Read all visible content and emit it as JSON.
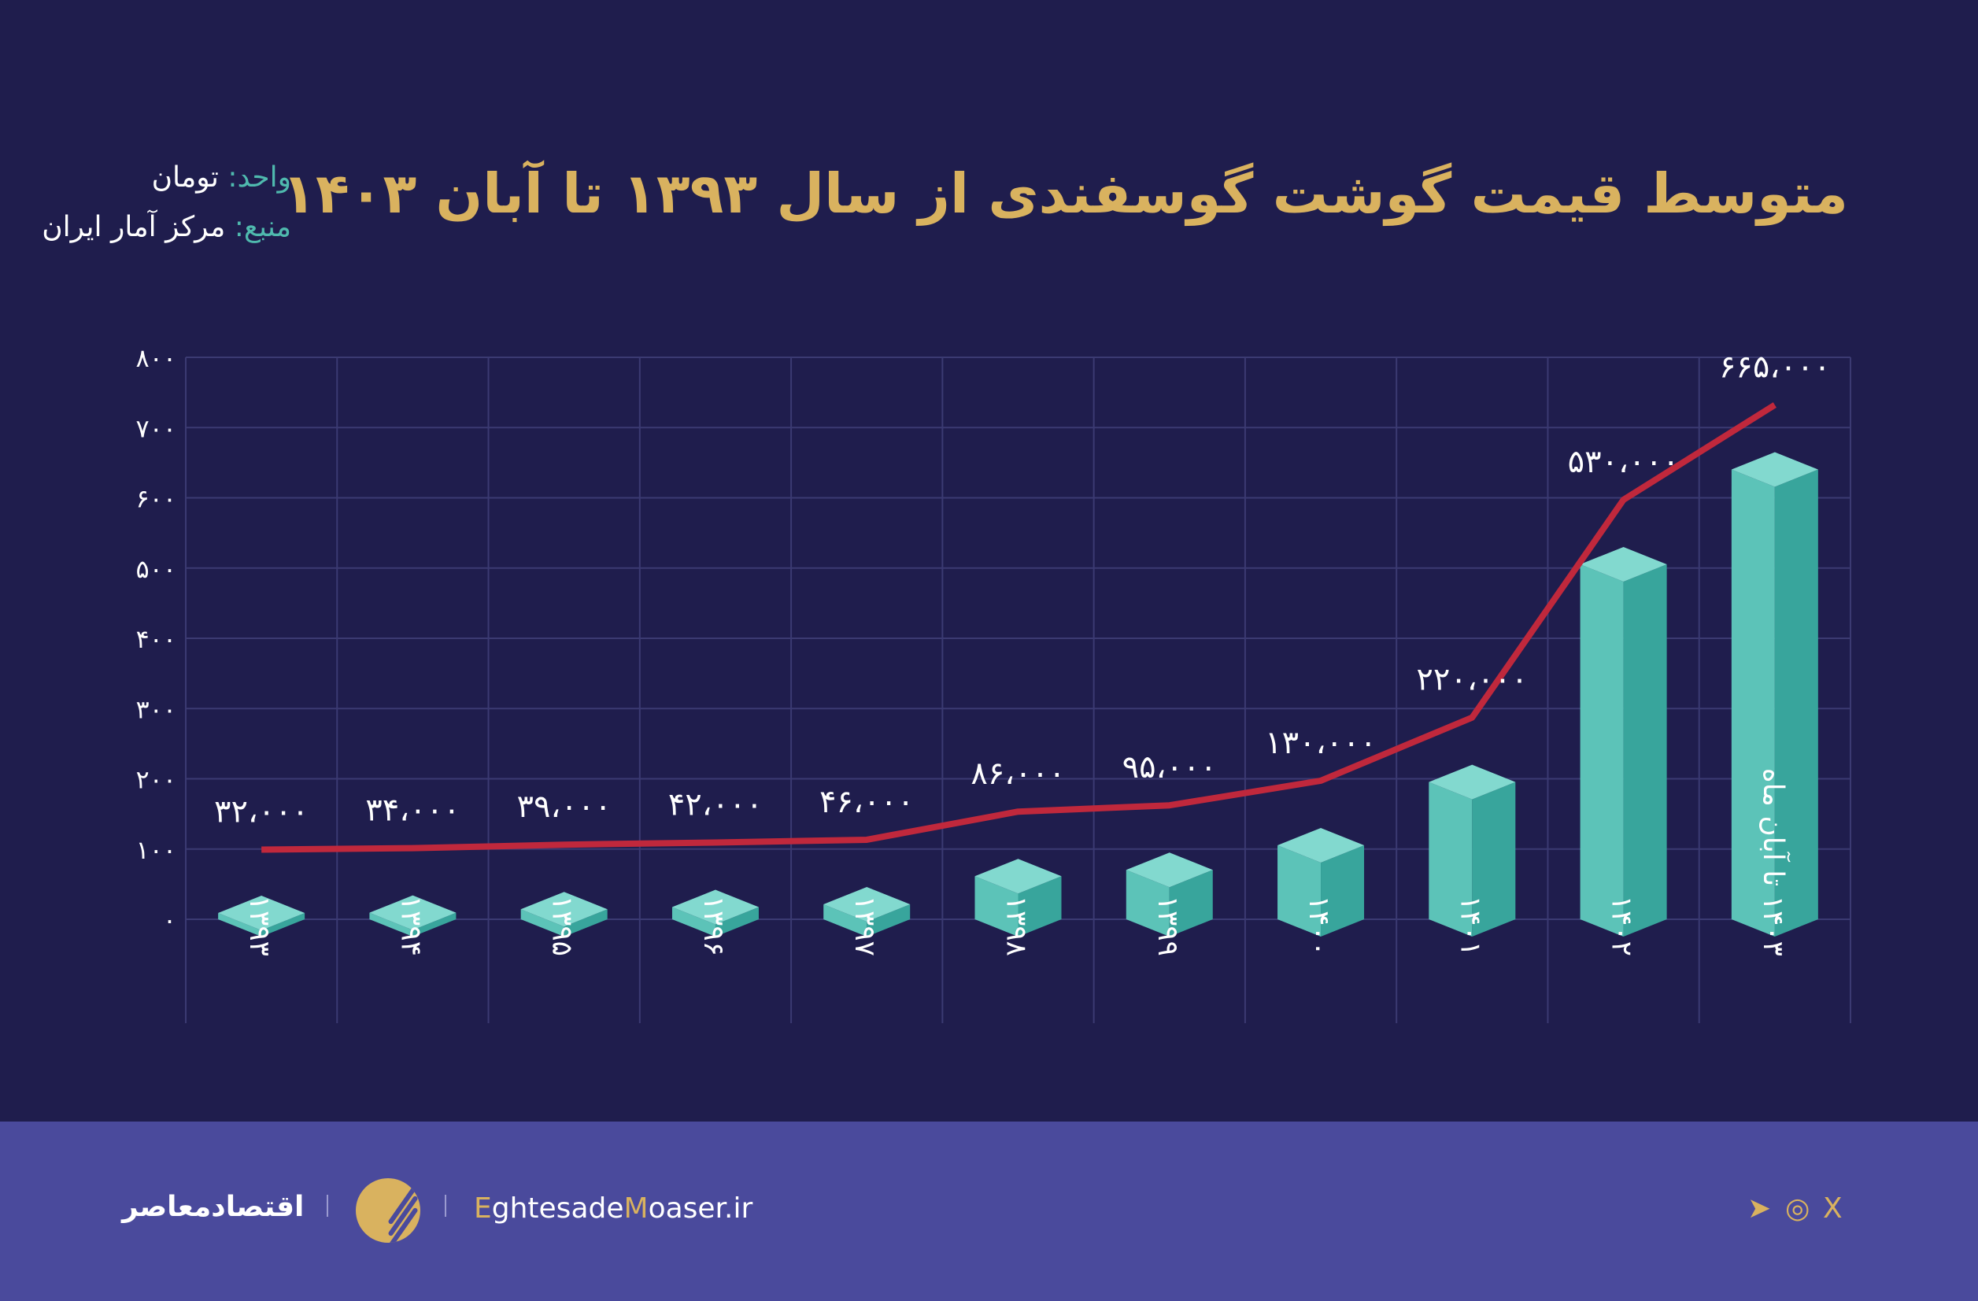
{
  "header": {
    "title": "متوسط قیمت گوشت گوسفندی از سال ۱۳۹۳ تا آبان ۱۴۰۳",
    "unit_label": "واحد:",
    "unit_value": "تومان",
    "source_label": "منبع:",
    "source_value": "مرکز آمار ایران"
  },
  "chart_data": {
    "type": "bar",
    "title": "متوسط قیمت گوشت گوسفندی از سال ۱۳۹۳ تا آبان ۱۴۰۳",
    "categories": [
      "۱۳۹۳",
      "۱۳۹۴",
      "۱۳۹۵",
      "۱۳۹۶",
      "۱۳۹۷",
      "۱۳۹۸",
      "۱۳۹۹",
      "۱۴۰۰",
      "۱۴۰۱",
      "۱۴۰۲",
      "۱۴۰۳ تا آبان ماه"
    ],
    "values": [
      32000,
      34000,
      39000,
      42000,
      46000,
      86000,
      95000,
      130000,
      220000,
      530000,
      665000
    ],
    "data_labels": [
      "۳۲،۰۰۰",
      "۳۴،۰۰۰",
      "۳۹،۰۰۰",
      "۴۲،۰۰۰",
      "۴۶،۰۰۰",
      "۸۶،۰۰۰",
      "۹۵،۰۰۰",
      "۱۳۰،۰۰۰",
      "۲۲۰،۰۰۰",
      "۵۳۰،۰۰۰",
      "۶۶۵،۰۰۰"
    ],
    "overlay": "line",
    "ylim": [
      0,
      800000
    ],
    "y_ticks": [
      "۰",
      "۱۰۰",
      "۲۰۰",
      "۳۰۰",
      "۴۰۰",
      "۵۰۰",
      "۶۰۰",
      "۷۰۰",
      "۸۰۰"
    ],
    "y_tick_scale": 1000,
    "grid": true,
    "xlabel": "",
    "ylabel": "",
    "colors": {
      "bar_front": "#5cc3b8",
      "bar_side": "#38a59c",
      "bar_top": "#82d9cf",
      "line": "#c0283c",
      "grid": "#3b3a72"
    }
  },
  "footer": {
    "brand_fa": "اقتصادمعاصر",
    "site_e": "E",
    "site_1": "ghtesade",
    "site_m": "M",
    "site_2": "oaser.ir",
    "social": [
      "telegram-icon",
      "instagram-icon",
      "x-icon"
    ],
    "telegram": "➤",
    "instagram": "◎",
    "x": "X"
  },
  "colors": {
    "background": "#1f1d4d",
    "footer": "#4a4a9c",
    "accent": "#d9b25f",
    "teal": "#4fb9ae"
  }
}
